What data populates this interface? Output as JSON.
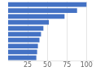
{
  "chart_data": {
    "type": "bar",
    "orientation": "horizontal",
    "categories": [
      null,
      null,
      null,
      null,
      null,
      null,
      null,
      null,
      null,
      null
    ],
    "values": [
      100,
      88,
      72,
      52,
      45,
      42,
      40,
      38,
      37,
      36
    ],
    "color": "#4472c4",
    "xlim": [
      0,
      108
    ],
    "xticks": [
      25,
      50,
      75,
      100
    ],
    "grid": true,
    "tick_labels": "x"
  }
}
